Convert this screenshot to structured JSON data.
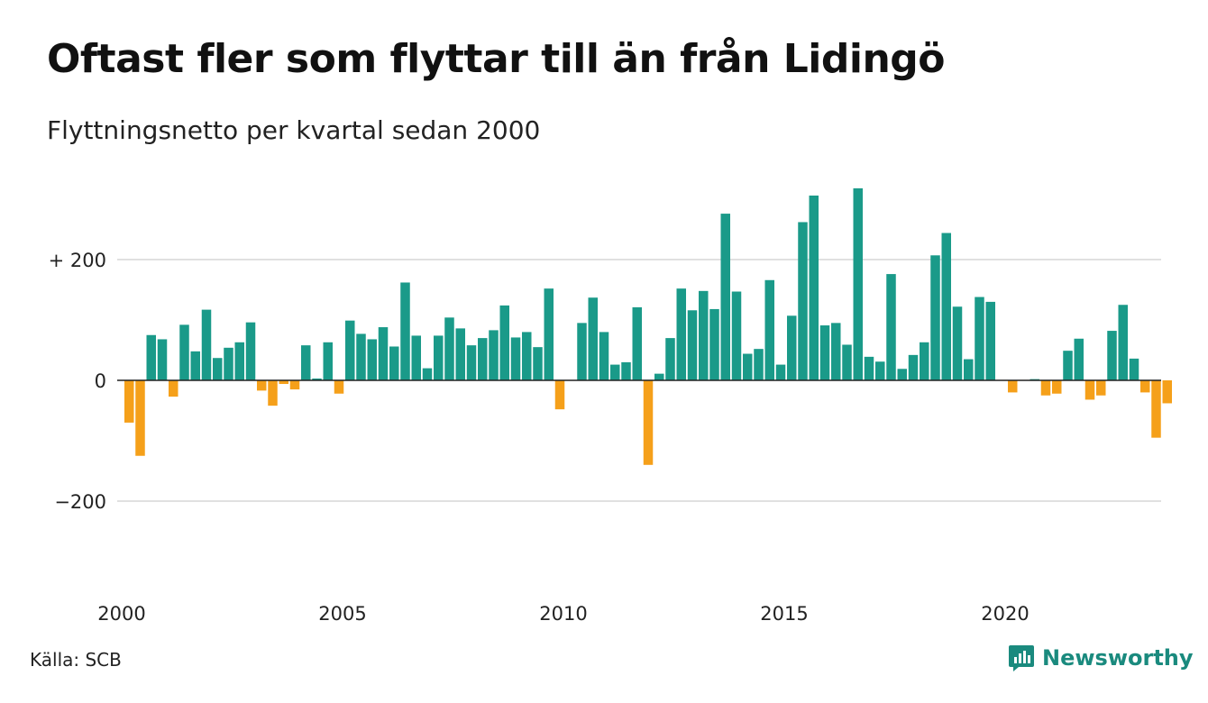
{
  "header": {
    "title": "Oftast fler som flyttar till än från Lidingö",
    "subtitle": "Flyttningsnetto per kvartal sedan 2000"
  },
  "footer": {
    "source": "Källa: SCB",
    "brand": "Newsworthy",
    "brand_icon": "newsworthy-logo-icon"
  },
  "colors": {
    "positive": "#1a9a89",
    "negative": "#f5a01a",
    "grid": "#e0e0e0",
    "zero_line": "#222222",
    "brand": "#1a8a7e"
  },
  "chart_data": {
    "type": "bar",
    "x_start": 2000,
    "period": "quarter",
    "values": [
      -70,
      -125,
      75,
      68,
      -27,
      92,
      48,
      117,
      37,
      54,
      63,
      96,
      -17,
      -42,
      -6,
      -15,
      58,
      3,
      63,
      -22,
      99,
      77,
      68,
      88,
      56,
      162,
      74,
      20,
      74,
      104,
      86,
      58,
      70,
      83,
      124,
      71,
      80,
      55,
      152,
      -48,
      0,
      95,
      137,
      80,
      26,
      30,
      121,
      -140,
      11,
      70,
      152,
      116,
      148,
      118,
      276,
      147,
      44,
      52,
      166,
      26,
      107,
      262,
      306,
      91,
      95,
      59,
      318,
      39,
      31,
      176,
      19,
      42,
      63,
      207,
      244,
      122,
      35,
      138,
      130,
      0,
      -20,
      0,
      2,
      -25,
      -22,
      49,
      69,
      -32,
      -25,
      82,
      125,
      36,
      -20,
      -95,
      -38
    ],
    "y_ticks": [
      {
        "value": 200,
        "label": "+ 200"
      },
      {
        "value": 0,
        "label": "0"
      },
      {
        "value": -200,
        "label": "−200"
      }
    ],
    "x_ticks": [
      {
        "value": 2000,
        "label": "2000"
      },
      {
        "value": 2005,
        "label": "2005"
      },
      {
        "value": 2010,
        "label": "2010"
      },
      {
        "value": 2015,
        "label": "2015"
      },
      {
        "value": 2020,
        "label": "2020"
      }
    ],
    "ylim": [
      -300,
      320
    ],
    "grid": true,
    "legend": "none"
  }
}
